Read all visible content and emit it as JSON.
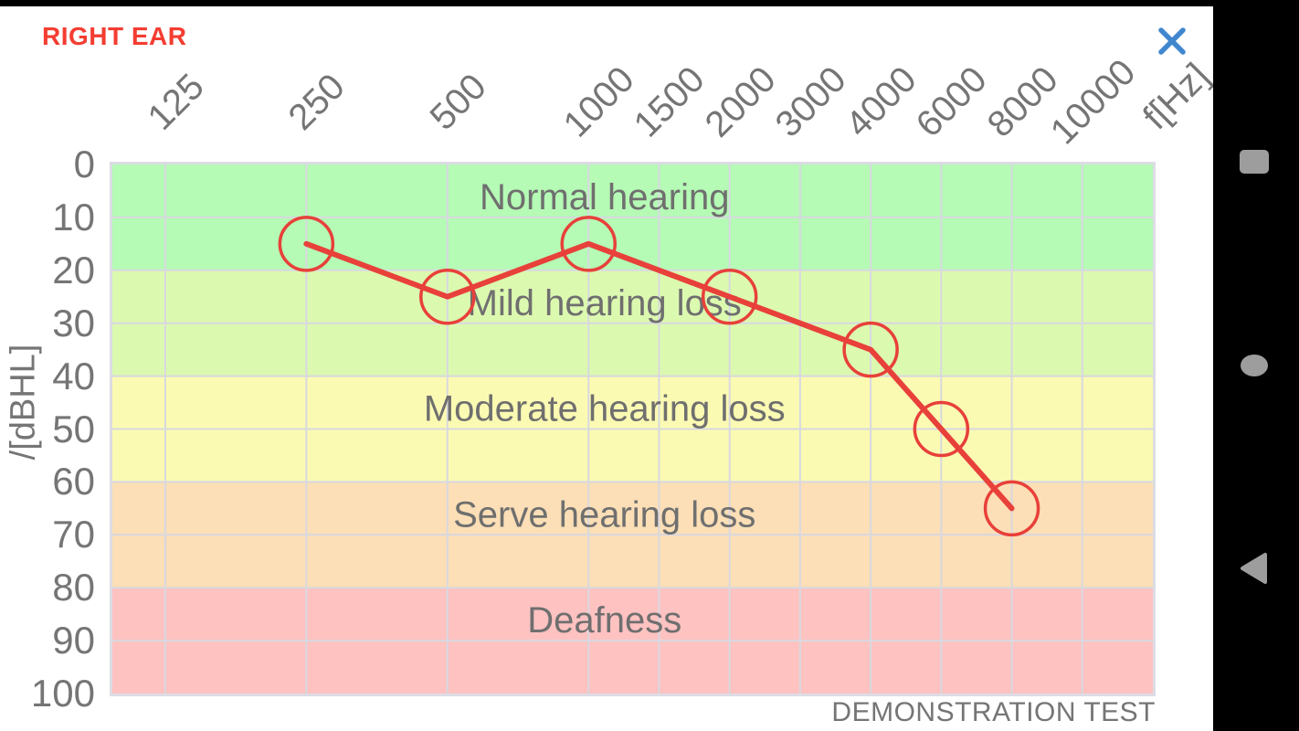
{
  "header": {
    "title": "RIGHT EAR"
  },
  "footer_note": "DEMONSTRATION TEST",
  "colors": {
    "title_red": "#f43d31",
    "close_blue": "#4187cf",
    "series_red": "#e8403a",
    "axis_text_gray": "#757575",
    "band_label_gray": "#6f6f6f",
    "nav_icon_gray": "#9d9d9d",
    "nav_bar_black": "#000000"
  },
  "android_nav": {
    "icons": [
      "recents-square",
      "home-circle",
      "back-triangle"
    ]
  },
  "chart_data": {
    "type": "line",
    "title": "",
    "x_label": "f[Hz]",
    "y_label": "/[dBHL]",
    "x_ticks": [
      125,
      250,
      500,
      1000,
      1500,
      2000,
      3000,
      4000,
      6000,
      8000,
      10000
    ],
    "y_ticks": [
      0,
      10,
      20,
      30,
      40,
      50,
      60,
      70,
      80,
      90,
      100
    ],
    "y_range": [
      0,
      100
    ],
    "bands": [
      {
        "label": "Normal hearing",
        "from_db": 0,
        "to_db": 20,
        "color": "#b5fab5"
      },
      {
        "label": "Mild hearing loss",
        "from_db": 20,
        "to_db": 40,
        "color": "#dcf9b0"
      },
      {
        "label": "Moderate hearing loss",
        "from_db": 40,
        "to_db": 60,
        "color": "#fbfab3"
      },
      {
        "label": "Serve hearing loss",
        "from_db": 60,
        "to_db": 80,
        "color": "#fcdfb6"
      },
      {
        "label": "Deafness",
        "from_db": 80,
        "to_db": 100,
        "color": "#fec2c1"
      }
    ],
    "series": [
      {
        "name": "right ear thresholds",
        "color": "#e8403a",
        "points": [
          [
            250,
            15
          ],
          [
            500,
            25
          ],
          [
            1000,
            15
          ],
          [
            2000,
            25
          ],
          [
            4000,
            35
          ],
          [
            6000,
            50
          ],
          [
            8000,
            65
          ]
        ]
      }
    ],
    "layout_hints": {
      "grid": true,
      "gridline_color": "#d8d8e0",
      "x_scale": "octave spacing to 1000 Hz, half-step columns above",
      "x_tick_units": [
        0.75,
        2.75,
        4.75,
        6.75,
        7.75,
        8.75,
        9.75,
        10.75,
        11.75,
        12.75,
        13.75
      ],
      "x_total_units": 14.75,
      "legend": "none"
    }
  }
}
